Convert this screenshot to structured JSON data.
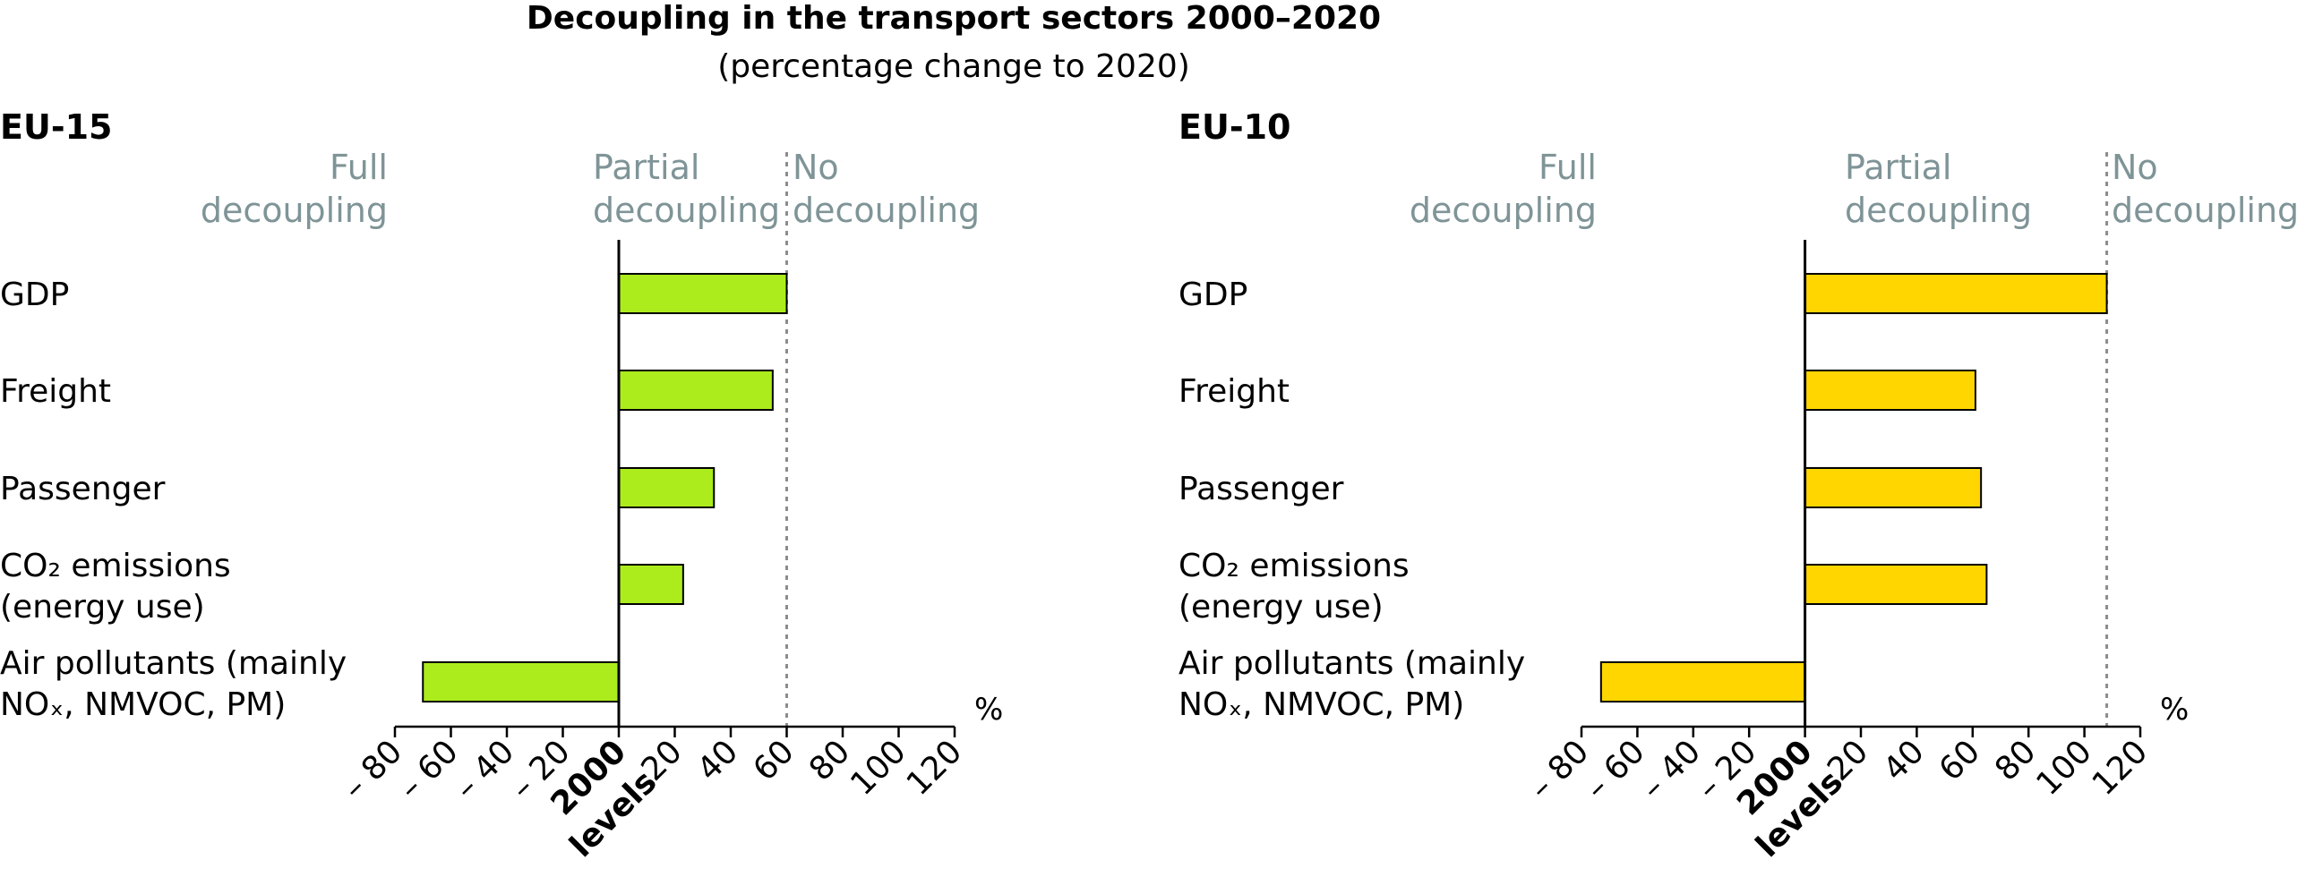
{
  "chart_data": {
    "type": "bar",
    "orientation": "horizontal",
    "title": "Decoupling in the transport sectors 2000–2020",
    "subtitle": "(percentage change to 2020)",
    "unit": "%",
    "xlim": [
      -80,
      120
    ],
    "ticks": [
      "– 80",
      "– 60",
      "– 40",
      "– 20",
      "20",
      "40",
      "60",
      "80",
      "100",
      "120"
    ],
    "tick_values": [
      -80,
      -60,
      -40,
      -20,
      20,
      40,
      60,
      80,
      100,
      120
    ],
    "zero_label": [
      "2000",
      "levels"
    ],
    "colors": {
      "bar_edge": "#000000",
      "zone_text": "#7f9497",
      "reference_line": "#8c8c8c"
    },
    "panels": [
      {
        "name": "EU-15",
        "bar_color": "#acec1d",
        "zone_labels": {
          "full": [
            "Full",
            "decoupling"
          ],
          "partial": [
            "Partial",
            "decoupling"
          ],
          "none": [
            "No",
            "decoupling"
          ]
        },
        "categories": [
          {
            "lines": [
              "GDP"
            ],
            "value": 60
          },
          {
            "lines": [
              "Freight"
            ],
            "value": 55
          },
          {
            "lines": [
              "Passenger"
            ],
            "value": 34
          },
          {
            "lines": [
              "CO₂ emissions",
              "(energy use)"
            ],
            "value": 23
          },
          {
            "lines": [
              "Air pollutants (mainly",
              "NOₓ, NMVOC, PM)"
            ],
            "value": -70
          }
        ],
        "reference_value": 60
      },
      {
        "name": "EU-10",
        "bar_color": "#ffd600",
        "zone_labels": {
          "full": [
            "Full",
            "decoupling"
          ],
          "partial": [
            "Partial",
            "decoupling"
          ],
          "none": [
            "No",
            "decoupling"
          ]
        },
        "categories": [
          {
            "lines": [
              "GDP"
            ],
            "value": 108
          },
          {
            "lines": [
              "Freight"
            ],
            "value": 61
          },
          {
            "lines": [
              "Passenger"
            ],
            "value": 63
          },
          {
            "lines": [
              "CO₂ emissions",
              "(energy use)"
            ],
            "value": 65
          },
          {
            "lines": [
              "Air pollutants (mainly",
              "NOₓ, NMVOC, PM)"
            ],
            "value": -73
          }
        ],
        "reference_value": 108
      }
    ]
  }
}
